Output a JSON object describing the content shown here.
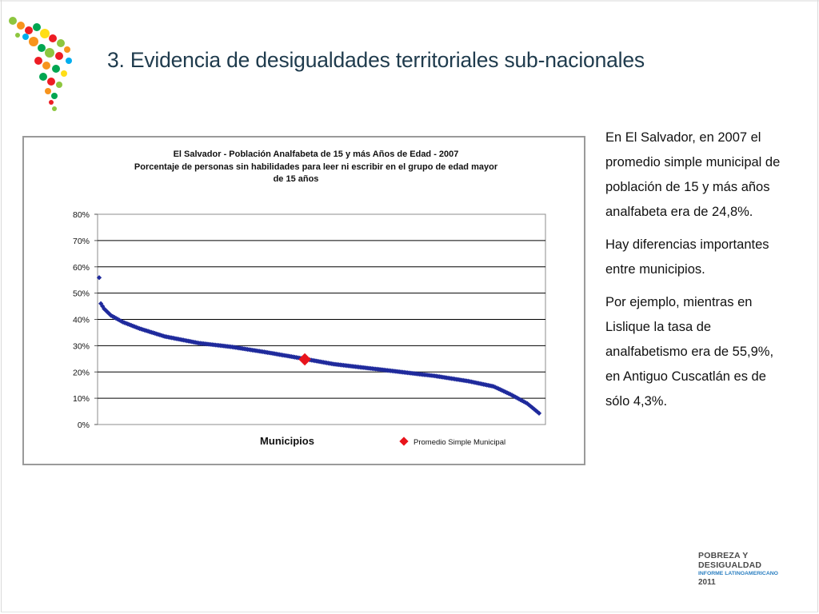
{
  "slide": {
    "title": "3. Evidencia de desigualdades territoriales sub-nacionales"
  },
  "side_paragraphs": [
    "En El Salvador, en 2007 el promedio simple municipal de población de 15 y más años analfabeta era de 24,8%.",
    "Hay diferencias importantes entre municipios.",
    "Por ejemplo, mientras en Lislique la tasa de analfabetismo era de 55,9%, en Antiguo Cuscatlán es de sólo 4,3%."
  ],
  "brand": {
    "line1": "POBREZA Y",
    "line2": "DESIGUALDAD",
    "line3": "INFORME LATINOAMERICANO",
    "line4": "2011"
  },
  "colors": {
    "series": "#1f2a9c",
    "marker": "#e8141c",
    "title": "#1f3b4d",
    "brand_blue": "#2b7fc1"
  },
  "chart_data": {
    "type": "scatter",
    "title_lines": [
      "El Salvador - Población Analfabeta de 15 y más Años de Edad - 2007",
      "Porcentaje de personas sin habilidades para leer ni escribir en el grupo de edad mayor",
      "de 15 años"
    ],
    "xlabel": "Municipios",
    "ylabel": "",
    "ylim": [
      0,
      80
    ],
    "y_ticks": [
      "0%",
      "10%",
      "20%",
      "30%",
      "40%",
      "50%",
      "60%",
      "70%",
      "80%"
    ],
    "grid": true,
    "series_points_count": 262,
    "series_profile": {
      "rank": [
        1,
        2,
        4,
        8,
        15,
        25,
        40,
        60,
        80,
        100,
        120,
        140,
        160,
        180,
        200,
        220,
        235,
        245,
        255,
        262
      ],
      "pct": [
        55.9,
        46,
        44,
        41.5,
        39,
        36.5,
        33.5,
        31,
        29.5,
        27.5,
        25.3,
        23,
        21.5,
        20,
        18.5,
        16.5,
        14.5,
        11.5,
        8,
        4.3
      ]
    },
    "average": {
      "label": "Promedio Simple Municipal",
      "value": 24.8,
      "rank": 123
    },
    "legend": {
      "position": "bottom-right",
      "label": "Promedio Simple Municipal"
    }
  }
}
